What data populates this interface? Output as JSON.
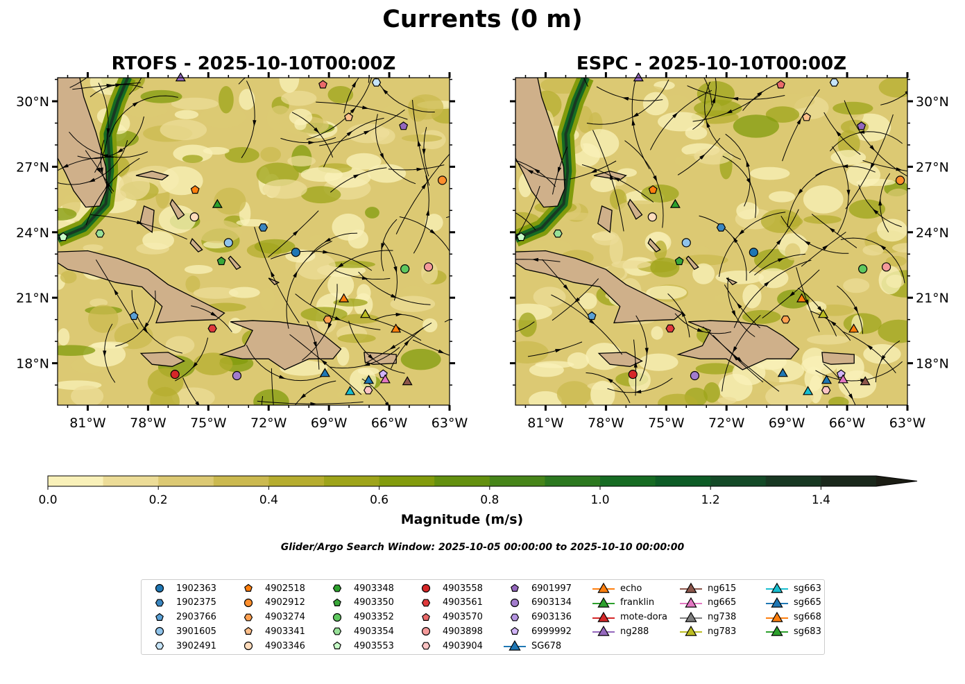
{
  "title": "Currents (0 m)",
  "panels": [
    {
      "title": "RTOFS - 2025-10-10T00:00Z",
      "seed": 7
    },
    {
      "title": "ESPC - 2025-10-10T00:00Z",
      "seed": 23
    }
  ],
  "search_window": "Glider/Argo Search Window: 2025-10-05 00:00:00 to 2025-10-10 00:00:00",
  "chart_data": {
    "type": "heatmap",
    "extent": {
      "lon": [
        -82.5,
        -63
      ],
      "lat": [
        16.08,
        31.08
      ]
    },
    "lon_ticks": [
      -81,
      -78,
      -75,
      -72,
      -69,
      -66,
      -63
    ],
    "lon_tick_labels": [
      "81°W",
      "78°W",
      "75°W",
      "72°W",
      "69°W",
      "66°W",
      "63°W"
    ],
    "lat_ticks": [
      18,
      21,
      24,
      27,
      30
    ],
    "lat_tick_labels": [
      "18°N",
      "21°N",
      "24°N",
      "27°N",
      "30°N"
    ],
    "colorbar": {
      "label": "Magnitude (m/s)",
      "levels": [
        0,
        0.1,
        0.2,
        0.3,
        0.4,
        0.5,
        0.6,
        0.7,
        0.8,
        0.9,
        1.0,
        1.1,
        1.2,
        1.3,
        1.4,
        1.5
      ],
      "tick_values": [
        0,
        0.2,
        0.4,
        0.6,
        0.8,
        1.0,
        1.2,
        1.4
      ],
      "tick_labels": [
        "0.0",
        "0.2",
        "0.4",
        "0.6",
        "0.8",
        "1.0",
        "1.2",
        "1.4"
      ],
      "colors": [
        "#f9f1b9",
        "#ecdc97",
        "#dcc973",
        "#cbb94f",
        "#b6ad2f",
        "#9ea41a",
        "#829b0c",
        "#63900f",
        "#468519",
        "#2c781f",
        "#166b23",
        "#0d5c26",
        "#144a27",
        "#183822",
        "#1a281b"
      ],
      "extend_color": "#1b1d14"
    },
    "land_color": "#cfb08a",
    "land": [
      [
        [
          -82.5,
          31.08
        ],
        [
          -81.4,
          31.08
        ],
        [
          -81.2,
          30.2
        ],
        [
          -80.6,
          28.6
        ],
        [
          -80.1,
          27
        ],
        [
          -80.05,
          26
        ],
        [
          -80.4,
          25.2
        ],
        [
          -81.1,
          25.15
        ],
        [
          -81.7,
          25.9
        ],
        [
          -82.1,
          26.7
        ],
        [
          -82.5,
          27.4
        ]
      ],
      [
        [
          -82.5,
          23.1
        ],
        [
          -81,
          23.15
        ],
        [
          -79.5,
          22.8
        ],
        [
          -78,
          22.3
        ],
        [
          -77,
          21.6
        ],
        [
          -75.7,
          21.0
        ],
        [
          -74.2,
          20.3
        ],
        [
          -74.6,
          20.0
        ],
        [
          -76,
          19.95
        ],
        [
          -77.6,
          19.85
        ],
        [
          -77.3,
          20.6
        ],
        [
          -78.3,
          21.5
        ],
        [
          -79.6,
          21.7
        ],
        [
          -81,
          22.1
        ],
        [
          -82,
          22.3
        ],
        [
          -82.5,
          22.6
        ]
      ],
      [
        [
          -73.9,
          19.9
        ],
        [
          -72.8,
          19.95
        ],
        [
          -71.5,
          19.9
        ],
        [
          -70,
          19.7
        ],
        [
          -69.2,
          19.25
        ],
        [
          -68.4,
          18.65
        ],
        [
          -68.8,
          18.2
        ],
        [
          -70,
          18.2
        ],
        [
          -71.2,
          17.7
        ],
        [
          -72,
          18.2
        ],
        [
          -73.3,
          18.2
        ],
        [
          -74.4,
          18.4
        ],
        [
          -73.2,
          18.8
        ],
        [
          -72.8,
          19.5
        ]
      ],
      [
        [
          -67.25,
          18.5
        ],
        [
          -65.65,
          18.4
        ],
        [
          -65.65,
          18.0
        ],
        [
          -66.8,
          17.95
        ],
        [
          -67.2,
          18.05
        ]
      ],
      [
        [
          -78.35,
          18.45
        ],
        [
          -77,
          18.5
        ],
        [
          -76.2,
          18.1
        ],
        [
          -76.8,
          17.85
        ],
        [
          -77.8,
          17.95
        ]
      ],
      [
        [
          -78.2,
          25.2
        ],
        [
          -77.7,
          25.0
        ],
        [
          -77.8,
          24.0
        ],
        [
          -78.4,
          24.4
        ]
      ],
      [
        [
          -77.8,
          26.8
        ],
        [
          -77.0,
          26.6
        ],
        [
          -77.3,
          26.4
        ],
        [
          -78.6,
          26.6
        ]
      ],
      [
        [
          -76.8,
          25.5
        ],
        [
          -76.2,
          24.8
        ],
        [
          -76.5,
          24.6
        ],
        [
          -76.9,
          25.3
        ]
      ],
      [
        [
          -75.8,
          23.7
        ],
        [
          -75.3,
          23.2
        ],
        [
          -75.5,
          23.1
        ],
        [
          -75.9,
          23.5
        ]
      ],
      [
        [
          -74.0,
          22.8
        ],
        [
          -73.6,
          22.3
        ],
        [
          -73.4,
          22.4
        ],
        [
          -73.9,
          22.9
        ]
      ],
      [
        [
          -72.0,
          21.9
        ],
        [
          -71.5,
          21.7
        ],
        [
          -71.7,
          21.6
        ]
      ]
    ],
    "markers": [
      {
        "name": "1902363",
        "shape": "circle",
        "color": "#1f77b4",
        "lon": -70.65,
        "lat": 23.08
      },
      {
        "name": "1902375",
        "shape": "hexagon",
        "color": "#3a86c0",
        "lon": -72.27,
        "lat": 24.22
      },
      {
        "name": "2903766",
        "shape": "pentagon",
        "color": "#5aa0d5",
        "lon": -78.7,
        "lat": 20.16
      },
      {
        "name": "3901605",
        "shape": "circle",
        "color": "#8fc3ea",
        "lon": -74.0,
        "lat": 23.52
      },
      {
        "name": "3902491",
        "shape": "hexagon",
        "color": "#c6e4f8",
        "lon": -66.64,
        "lat": 30.86
      },
      {
        "name": "4902518",
        "shape": "pentagon",
        "color": "#ff7f0e",
        "lon": -75.66,
        "lat": 25.94
      },
      {
        "name": "4902912",
        "shape": "circle",
        "color": "#ff8f2d",
        "lon": -63.36,
        "lat": 26.38
      },
      {
        "name": "4903274",
        "shape": "hexagon",
        "color": "#ffa050",
        "lon": -69.06,
        "lat": 20.0
      },
      {
        "name": "4903341",
        "shape": "pentagon",
        "color": "#ffbf8a",
        "lon": -68.02,
        "lat": 29.27
      },
      {
        "name": "4903346",
        "shape": "circle",
        "color": "#ffdcbc",
        "lon": -75.69,
        "lat": 24.7
      },
      {
        "name": "4903348",
        "shape": "hexagon",
        "color": "#2ca02c",
        "lon": null,
        "lat": null
      },
      {
        "name": "4903350",
        "shape": "pentagon",
        "color": "#3aa83a",
        "lon": -74.35,
        "lat": 22.67
      },
      {
        "name": "4903352",
        "shape": "circle",
        "color": "#5fc85f",
        "lon": -65.22,
        "lat": 22.32
      },
      {
        "name": "4903354",
        "shape": "hexagon",
        "color": "#98e098",
        "lon": -80.39,
        "lat": 23.94
      },
      {
        "name": "4903553",
        "shape": "pentagon",
        "color": "#c8fcc8",
        "lon": -82.22,
        "lat": 23.78
      },
      {
        "name": "4903558",
        "shape": "circle",
        "color": "#d62728",
        "lon": -76.66,
        "lat": 17.49
      },
      {
        "name": "4903561",
        "shape": "hexagon",
        "color": "#e03a3c",
        "lon": -74.8,
        "lat": 19.59
      },
      {
        "name": "4903570",
        "shape": "pentagon",
        "color": "#ea6a6a",
        "lon": -69.3,
        "lat": 30.76
      },
      {
        "name": "4903898",
        "shape": "circle",
        "color": "#f49a9a",
        "lon": -64.05,
        "lat": 22.41
      },
      {
        "name": "4903904",
        "shape": "hexagon",
        "color": "#fcc4c4",
        "lon": -67.05,
        "lat": 16.76
      },
      {
        "name": "6901997",
        "shape": "pentagon",
        "color": "#9467bd",
        "lon": -65.29,
        "lat": 28.86
      },
      {
        "name": "6903134",
        "shape": "circle",
        "color": "#a27ccc",
        "lon": -73.58,
        "lat": 17.43
      },
      {
        "name": "6903136",
        "shape": "hexagon",
        "color": "#b494e0",
        "lon": null,
        "lat": null
      },
      {
        "name": "6999992",
        "shape": "pentagon",
        "color": "#d2b4f8",
        "lon": -66.3,
        "lat": 17.5
      },
      {
        "name": "SG678",
        "shape": "triangle",
        "color": "#1f77b4",
        "lon": -69.2,
        "lat": 17.56
      },
      {
        "name": "echo",
        "shape": "triangle",
        "color": "#ff7f0e",
        "lon": -68.26,
        "lat": 20.98
      },
      {
        "name": "franklin",
        "shape": "triangle",
        "color": "#2ca02c",
        "lon": -74.55,
        "lat": 25.3
      },
      {
        "name": "mote-dora",
        "shape": "triangle",
        "color": "#d62728",
        "lon": null,
        "lat": null
      },
      {
        "name": "ng288",
        "shape": "triangle",
        "color": "#9467bd",
        "lon": -76.38,
        "lat": 31.1
      },
      {
        "name": "ng615",
        "shape": "triangle",
        "color": "#8c564b",
        "lon": -65.1,
        "lat": 17.18
      },
      {
        "name": "ng665",
        "shape": "triangle",
        "color": "#e377c2",
        "lon": -66.2,
        "lat": 17.27
      },
      {
        "name": "ng738",
        "shape": "triangle",
        "color": "#7f7f7f",
        "lon": null,
        "lat": null
      },
      {
        "name": "ng783",
        "shape": "triangle",
        "color": "#bcbd22",
        "lon": -67.19,
        "lat": 20.26
      },
      {
        "name": "sg663",
        "shape": "triangle",
        "color": "#17becf",
        "lon": -67.95,
        "lat": 16.73
      },
      {
        "name": "sg665",
        "shape": "triangle",
        "color": "#1f77b4",
        "lon": -67.02,
        "lat": 17.24
      },
      {
        "name": "sg668",
        "shape": "triangle",
        "color": "#ff7f0e",
        "lon": -65.67,
        "lat": 19.59
      },
      {
        "name": "sg683",
        "shape": "triangle",
        "color": "#2ca02c",
        "lon": null,
        "lat": null
      }
    ]
  }
}
